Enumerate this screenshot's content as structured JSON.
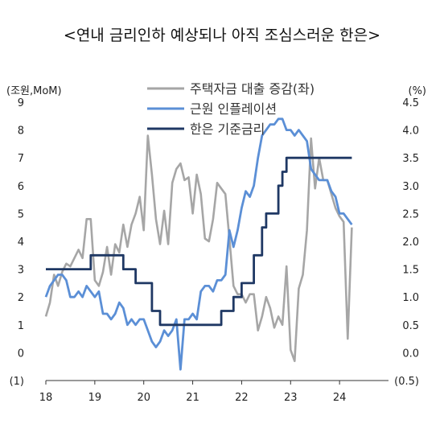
{
  "chart_data": {
    "type": "line",
    "title": "<연내 금리인하 예상되나 아직 조심스러운 한은>",
    "left_axis_label": "(조원,MoM)",
    "right_axis_label": "(%)",
    "left_ylim": [
      -1,
      9
    ],
    "right_ylim": [
      -0.5,
      4.5
    ],
    "left_ticks": [
      "(1)",
      "0",
      "1",
      "2",
      "3",
      "4",
      "5",
      "6",
      "7",
      "8",
      "9"
    ],
    "right_ticks": [
      "(0.5)",
      "0.0",
      "0.5",
      "1.0",
      "1.5",
      "2.0",
      "2.5",
      "3.0",
      "3.5",
      "4.0",
      "4.5"
    ],
    "x_ticks": [
      "18",
      "19",
      "20",
      "21",
      "22",
      "23",
      "24"
    ],
    "legend_position": "top-center",
    "series": [
      {
        "name": "주택자금 대출 증감(좌)",
        "axis": "left",
        "color": "#a6a6a6",
        "x": [
          2018.0,
          2018.083,
          2018.167,
          2018.25,
          2018.333,
          2018.417,
          2018.5,
          2018.583,
          2018.667,
          2018.75,
          2018.833,
          2018.917,
          2019.0,
          2019.083,
          2019.167,
          2019.25,
          2019.333,
          2019.417,
          2019.5,
          2019.583,
          2019.667,
          2019.75,
          2019.833,
          2019.917,
          2020.0,
          2020.083,
          2020.167,
          2020.25,
          2020.333,
          2020.417,
          2020.5,
          2020.583,
          2020.667,
          2020.75,
          2020.833,
          2020.917,
          2021.0,
          2021.083,
          2021.167,
          2021.25,
          2021.333,
          2021.417,
          2021.5,
          2021.583,
          2021.667,
          2021.75,
          2021.833,
          2021.917,
          2022.0,
          2022.083,
          2022.167,
          2022.25,
          2022.333,
          2022.417,
          2022.5,
          2022.583,
          2022.667,
          2022.75,
          2022.833,
          2022.917,
          2023.0,
          2023.083,
          2023.167,
          2023.25,
          2023.333,
          2023.417,
          2023.5,
          2023.583,
          2023.667,
          2023.75,
          2023.833,
          2023.917,
          2024.0,
          2024.083,
          2024.167,
          2024.25
        ],
        "values": [
          1.3,
          1.8,
          2.8,
          2.4,
          2.9,
          3.2,
          3.1,
          3.4,
          3.7,
          3.4,
          4.8,
          4.8,
          2.6,
          2.4,
          2.9,
          3.8,
          2.8,
          3.9,
          3.6,
          4.6,
          3.8,
          4.6,
          5.0,
          5.6,
          4.4,
          7.8,
          6.4,
          4.8,
          3.9,
          5.1,
          3.9,
          6.1,
          6.6,
          6.8,
          6.2,
          6.3,
          5.0,
          6.4,
          5.7,
          4.1,
          4.0,
          4.8,
          6.1,
          5.9,
          5.7,
          4.1,
          2.4,
          2.1,
          2.1,
          1.8,
          2.1,
          2.1,
          0.8,
          1.3,
          2.0,
          1.6,
          0.9,
          1.3,
          1.0,
          3.1,
          0.1,
          -0.3,
          2.3,
          2.8,
          4.4,
          7.7,
          5.9,
          7.0,
          6.2,
          6.2,
          5.7,
          5.2,
          4.9,
          4.7,
          0.5,
          4.5
        ]
      },
      {
        "name": "근원 인플레이션",
        "axis": "right",
        "color": "#5b8fd6",
        "x": [
          2018.0,
          2018.083,
          2018.167,
          2018.25,
          2018.333,
          2018.417,
          2018.5,
          2018.583,
          2018.667,
          2018.75,
          2018.833,
          2018.917,
          2019.0,
          2019.083,
          2019.167,
          2019.25,
          2019.333,
          2019.417,
          2019.5,
          2019.583,
          2019.667,
          2019.75,
          2019.833,
          2019.917,
          2020.0,
          2020.083,
          2020.167,
          2020.25,
          2020.333,
          2020.417,
          2020.5,
          2020.583,
          2020.667,
          2020.75,
          2020.833,
          2020.917,
          2021.0,
          2021.083,
          2021.167,
          2021.25,
          2021.333,
          2021.417,
          2021.5,
          2021.583,
          2021.667,
          2021.75,
          2021.833,
          2021.917,
          2022.0,
          2022.083,
          2022.167,
          2022.25,
          2022.333,
          2022.417,
          2022.5,
          2022.583,
          2022.667,
          2022.75,
          2022.833,
          2022.917,
          2023.0,
          2023.083,
          2023.167,
          2023.25,
          2023.333,
          2023.417,
          2023.5,
          2023.583,
          2023.667,
          2023.75,
          2023.833,
          2023.917,
          2024.0,
          2024.083,
          2024.167,
          2024.25
        ],
        "values": [
          1.0,
          1.2,
          1.3,
          1.4,
          1.4,
          1.3,
          1.0,
          1.0,
          1.1,
          1.0,
          1.2,
          1.1,
          1.0,
          1.1,
          0.7,
          0.7,
          0.6,
          0.7,
          0.9,
          0.8,
          0.5,
          0.6,
          0.5,
          0.6,
          0.6,
          0.4,
          0.2,
          0.1,
          0.2,
          0.4,
          0.3,
          0.4,
          0.6,
          -0.3,
          0.6,
          0.6,
          0.7,
          0.6,
          1.1,
          1.2,
          1.2,
          1.1,
          1.3,
          1.3,
          1.4,
          2.2,
          1.9,
          2.2,
          2.6,
          2.9,
          2.8,
          3.0,
          3.5,
          3.9,
          4.0,
          4.1,
          4.1,
          4.2,
          4.2,
          4.0,
          4.0,
          3.9,
          4.0,
          3.9,
          3.8,
          3.3,
          3.2,
          3.1,
          3.1,
          3.1,
          2.9,
          2.8,
          2.5,
          2.5,
          2.4,
          2.3
        ]
      },
      {
        "name": "한은 기준금리",
        "axis": "right",
        "color": "#1f3864",
        "x": [
          2018.0,
          2018.917,
          2018.917,
          2019.583,
          2019.583,
          2019.833,
          2019.833,
          2020.167,
          2020.167,
          2020.333,
          2020.333,
          2021.583,
          2021.583,
          2021.833,
          2021.833,
          2022.0,
          2022.0,
          2022.25,
          2022.25,
          2022.417,
          2022.417,
          2022.5,
          2022.5,
          2022.75,
          2022.75,
          2022.833,
          2022.833,
          2022.917,
          2022.917,
          2023.0,
          2023.0,
          2024.25
        ],
        "values": [
          1.5,
          1.5,
          1.75,
          1.75,
          1.5,
          1.5,
          1.25,
          1.25,
          0.75,
          0.75,
          0.5,
          0.5,
          0.75,
          0.75,
          1.0,
          1.0,
          1.25,
          1.25,
          1.75,
          1.75,
          2.25,
          2.25,
          2.5,
          2.5,
          3.0,
          3.0,
          3.25,
          3.25,
          3.5,
          3.5,
          3.5,
          3.5
        ]
      }
    ]
  }
}
